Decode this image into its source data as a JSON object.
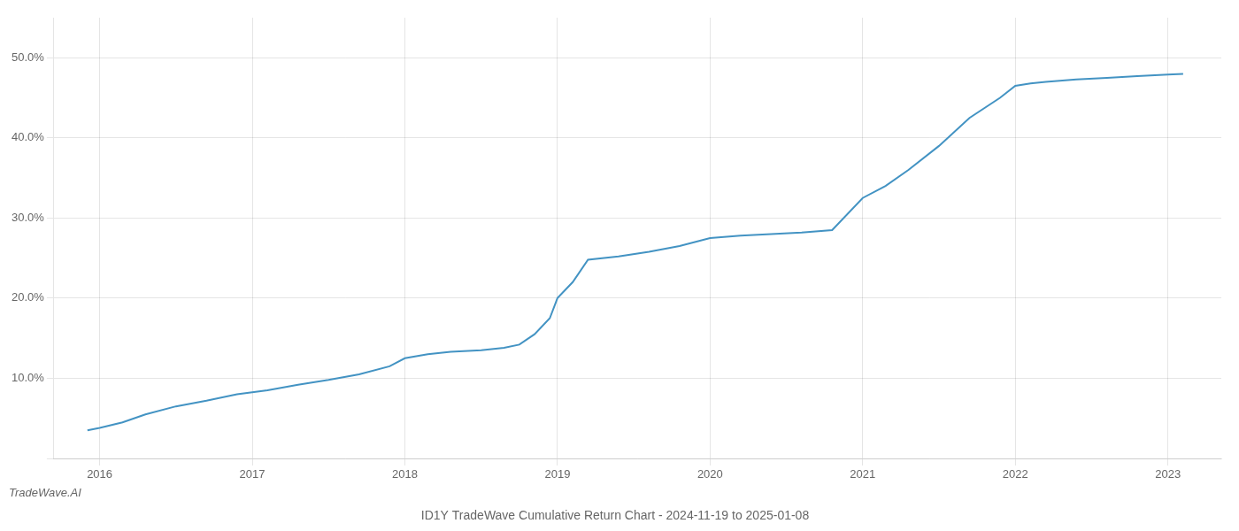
{
  "chart_data": {
    "type": "line",
    "title": "ID1Y TradeWave Cumulative Return Chart - 2024-11-19 to 2025-01-08",
    "annotations": [
      "TradeWave.AI"
    ],
    "x": [
      2015.92,
      2016.0,
      2016.15,
      2016.3,
      2016.5,
      2016.7,
      2016.9,
      2017.1,
      2017.3,
      2017.5,
      2017.7,
      2017.9,
      2018.0,
      2018.15,
      2018.3,
      2018.5,
      2018.65,
      2018.75,
      2018.85,
      2018.95,
      2019.0,
      2019.1,
      2019.2,
      2019.4,
      2019.6,
      2019.8,
      2020.0,
      2020.2,
      2020.4,
      2020.6,
      2020.8,
      2021.0,
      2021.15,
      2021.3,
      2021.5,
      2021.7,
      2021.9,
      2022.0,
      2022.1,
      2022.2,
      2022.4,
      2022.6,
      2022.8,
      2023.0,
      2023.1
    ],
    "values": [
      3.5,
      3.8,
      4.5,
      5.5,
      6.5,
      7.2,
      8.0,
      8.5,
      9.2,
      9.8,
      10.5,
      11.5,
      12.5,
      13.0,
      13.3,
      13.5,
      13.8,
      14.2,
      15.5,
      17.5,
      20.0,
      22.0,
      24.8,
      25.2,
      25.8,
      26.5,
      27.5,
      27.8,
      28.0,
      28.2,
      28.5,
      32.5,
      34.0,
      36.0,
      39.0,
      42.5,
      45.0,
      46.5,
      46.8,
      47.0,
      47.3,
      47.5,
      47.7,
      47.9,
      48.0
    ],
    "color": "#4393c3",
    "xlim": [
      2015.7,
      2023.35
    ],
    "ylim": [
      0,
      55
    ],
    "xticks": [
      2016,
      2017,
      2018,
      2019,
      2020,
      2021,
      2022,
      2023
    ],
    "yticks": [
      {
        "value": 0,
        "label": ""
      },
      {
        "value": 10.0,
        "label": "10.0%"
      },
      {
        "value": 20.0,
        "label": "20.0%"
      },
      {
        "value": 30.0,
        "label": "30.0%"
      },
      {
        "value": 40.0,
        "label": "40.0%"
      },
      {
        "value": 50.0,
        "label": "50.0%"
      }
    ],
    "grid": true
  }
}
